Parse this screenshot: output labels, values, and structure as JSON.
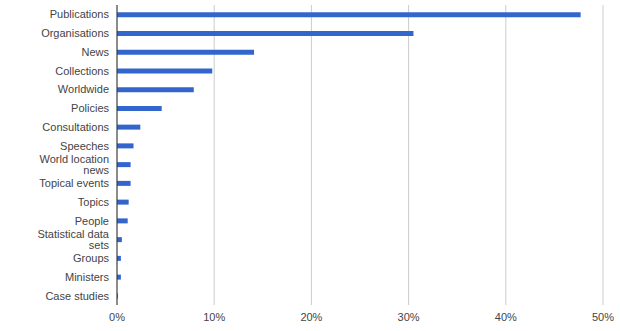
{
  "chart_data": {
    "type": "bar",
    "orientation": "horizontal",
    "categories": [
      "Publications",
      "Organisations",
      "News",
      "Collections",
      "Worldwide",
      "Policies",
      "Consultations",
      "Speeches",
      "World location news",
      "Topical events",
      "Topics",
      "People",
      "Statistical data sets",
      "Groups",
      "Ministers",
      "Case studies"
    ],
    "values": [
      47.7,
      30.5,
      14.1,
      9.8,
      7.9,
      4.6,
      2.4,
      1.7,
      1.4,
      1.4,
      1.2,
      1.1,
      0.5,
      0.4,
      0.4,
      0.1
    ],
    "color": "#3366cc",
    "xlim": [
      0,
      50
    ],
    "xticks": [
      {
        "value": 0,
        "label": "0%"
      },
      {
        "value": 10,
        "label": "10%"
      },
      {
        "value": 20,
        "label": "20%"
      },
      {
        "value": 30,
        "label": "30%"
      },
      {
        "value": 40,
        "label": "40%"
      },
      {
        "value": 50,
        "label": "50%"
      }
    ],
    "grid": true
  }
}
